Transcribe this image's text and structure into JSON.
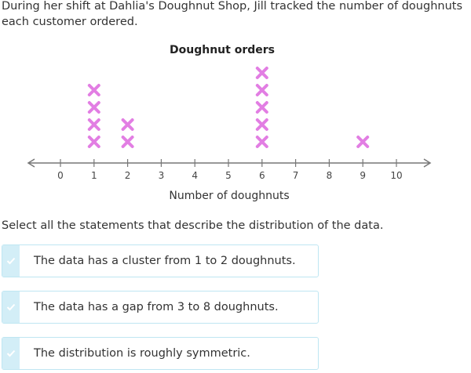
{
  "prompt": "During her shift at Dahlia's Doughnut Shop, Jill tracked the number of doughnuts each customer ordered.",
  "question": "Select all the statements that describe the distribution of the data.",
  "choices": [
    {
      "label": "The data has a cluster from 1 to 2 doughnuts.",
      "selected": false
    },
    {
      "label": "The data has a gap from 3 to 8 doughnuts.",
      "selected": false
    },
    {
      "label": "The distribution is roughly symmetric.",
      "selected": false
    }
  ],
  "colors": {
    "mark": "#e27ee3",
    "choice_border": "#bfe6f2",
    "choice_check_bg": "#d3eef7",
    "axis": "#777777"
  },
  "chart_data": {
    "type": "scatter",
    "title": "Doughnut orders",
    "xlabel": "Number of doughnuts",
    "ylabel": "",
    "xlim": [
      0,
      10
    ],
    "ticks": [
      0,
      1,
      2,
      3,
      4,
      5,
      6,
      7,
      8,
      9,
      10
    ],
    "counts": [
      {
        "x": 1,
        "count": 4
      },
      {
        "x": 2,
        "count": 2
      },
      {
        "x": 6,
        "count": 5
      },
      {
        "x": 9,
        "count": 1
      }
    ],
    "mark": "x"
  }
}
